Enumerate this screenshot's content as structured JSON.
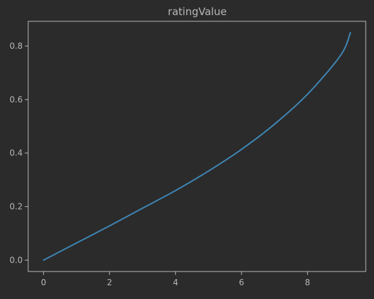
{
  "chart_data": {
    "type": "line",
    "title": "ratingValue",
    "xlabel": "",
    "ylabel": "",
    "xlim": [
      -0.465,
      9.765
    ],
    "ylim": [
      -0.0425,
      0.8925
    ],
    "xticks": [
      0,
      2,
      4,
      6,
      8
    ],
    "xtick_labels": [
      "0",
      "2",
      "4",
      "6",
      "8"
    ],
    "yticks": [
      0.0,
      0.2,
      0.4,
      0.6,
      0.8
    ],
    "ytick_labels": [
      "0.0",
      "0.2",
      "0.4",
      "0.6",
      "0.8"
    ],
    "grid": false,
    "legend": "none",
    "series": [
      {
        "color": "#3e86b5",
        "x": [
          0,
          1,
          2,
          3,
          4,
          5,
          6,
          7,
          8,
          9,
          9.3
        ],
        "y": [
          0.0,
          0.064,
          0.128,
          0.194,
          0.26,
          0.333,
          0.414,
          0.508,
          0.62,
          0.765,
          0.85
        ]
      }
    ]
  },
  "style": {
    "background": "#2b2b2b",
    "axes_color": "#b8b8b8",
    "text_color": "#b8b8b8"
  }
}
